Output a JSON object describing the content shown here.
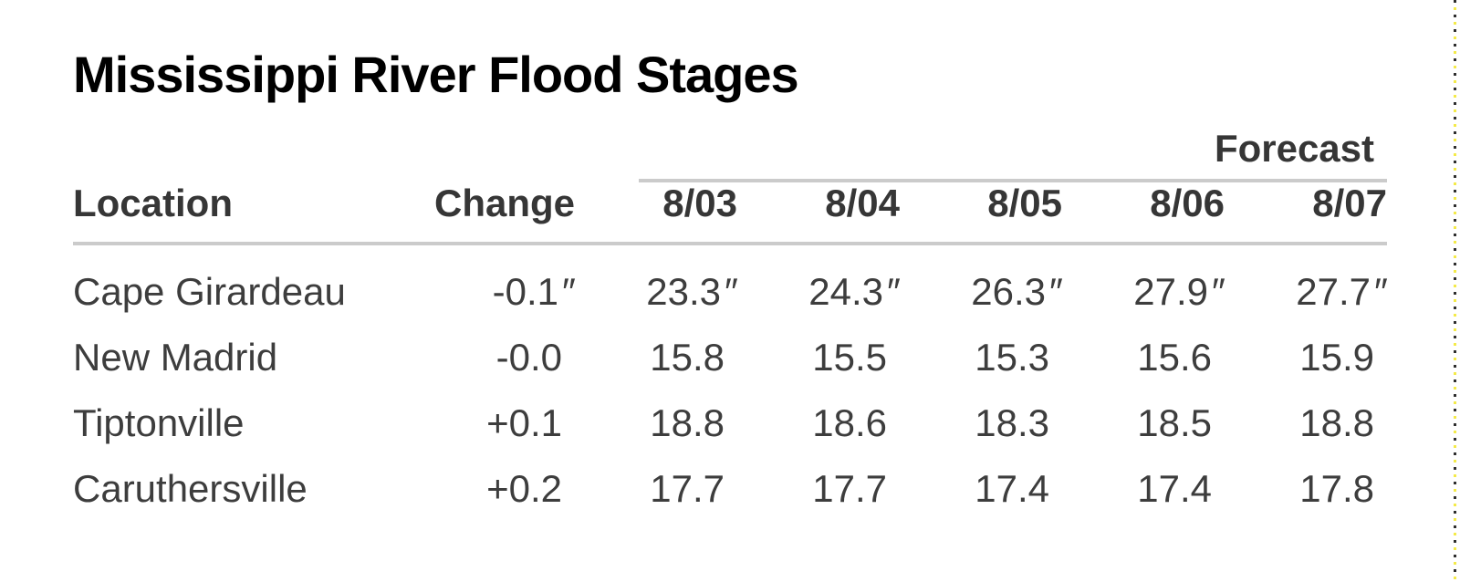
{
  "title": "Mississippi River Flood Stages",
  "table": {
    "forecast_label": "Forecast",
    "headers": {
      "location": "Location",
      "change": "Change",
      "dates": [
        "8/03",
        "8/04",
        "8/05",
        "8/06",
        "8/07"
      ]
    },
    "rows": [
      {
        "location": "Cape Girardeau",
        "change": {
          "v": "-0.1",
          "u": "″"
        },
        "values": [
          {
            "v": "23.3",
            "u": "″"
          },
          {
            "v": "24.3",
            "u": "″"
          },
          {
            "v": "26.3",
            "u": "″"
          },
          {
            "v": "27.9",
            "u": "″"
          },
          {
            "v": "27.7",
            "u": "″"
          }
        ]
      },
      {
        "location": "New Madrid",
        "change": {
          "v": "-0.0",
          "u": ""
        },
        "values": [
          {
            "v": "15.8",
            "u": ""
          },
          {
            "v": "15.5",
            "u": ""
          },
          {
            "v": "15.3",
            "u": ""
          },
          {
            "v": "15.6",
            "u": ""
          },
          {
            "v": "15.9",
            "u": ""
          }
        ]
      },
      {
        "location": "Tiptonville",
        "change": {
          "v": "+0.1",
          "u": ""
        },
        "values": [
          {
            "v": "18.8",
            "u": ""
          },
          {
            "v": "18.6",
            "u": ""
          },
          {
            "v": "18.3",
            "u": ""
          },
          {
            "v": "18.5",
            "u": ""
          },
          {
            "v": "18.8",
            "u": ""
          }
        ]
      },
      {
        "location": "Caruthersville",
        "change": {
          "v": "+0.2",
          "u": ""
        },
        "values": [
          {
            "v": "17.7",
            "u": ""
          },
          {
            "v": "17.7",
            "u": ""
          },
          {
            "v": "17.4",
            "u": ""
          },
          {
            "v": "17.4",
            "u": ""
          },
          {
            "v": "17.8",
            "u": ""
          }
        ]
      }
    ]
  },
  "colors": {
    "title_text": "#000000",
    "table_text": "#3d3d3d",
    "header_text": "#363636",
    "rule": "#cbcbcb",
    "marquee_dark": "#2e2e2e",
    "marquee_yellow": "#f4ea49",
    "background": "#ffffff"
  }
}
